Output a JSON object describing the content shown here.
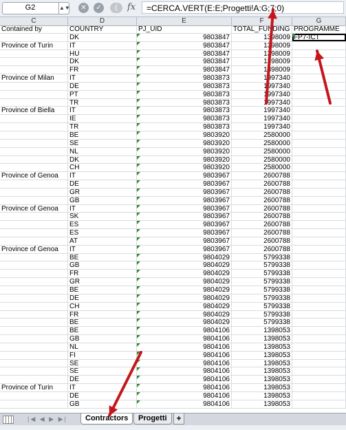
{
  "formula_bar": {
    "cell_ref": "G2",
    "formula": "=CERCA.VERT(E:E;Progetti!A:G;7;0)",
    "fx_label": "fx"
  },
  "columns": [
    "C",
    "D",
    "E",
    "F",
    "G"
  ],
  "header_row": {
    "contained_by": "Contained by",
    "country": "COUNTRY",
    "pj_uid": "PJ_UID",
    "total_funding": "TOTAL_FUNDING",
    "programme": "PROGRAMME"
  },
  "rows": [
    {
      "c": "",
      "d": "DK",
      "e": "9803847",
      "f": "1398009",
      "g": "FP7-ICT"
    },
    {
      "c": "Province of Turin",
      "d": "IT",
      "e": "9803847",
      "f": "1398009",
      "g": ""
    },
    {
      "c": "",
      "d": "HU",
      "e": "9803847",
      "f": "1398009",
      "g": ""
    },
    {
      "c": "",
      "d": "DK",
      "e": "9803847",
      "f": "1398009",
      "g": ""
    },
    {
      "c": "",
      "d": "FR",
      "e": "9803847",
      "f": "1398009",
      "g": ""
    },
    {
      "c": "Province of Milan",
      "d": "IT",
      "e": "9803873",
      "f": "1997340",
      "g": ""
    },
    {
      "c": "",
      "d": "DE",
      "e": "9803873",
      "f": "1997340",
      "g": ""
    },
    {
      "c": "",
      "d": "PT",
      "e": "9803873",
      "f": "1997340",
      "g": ""
    },
    {
      "c": "",
      "d": "TR",
      "e": "9803873",
      "f": "1997340",
      "g": ""
    },
    {
      "c": "Province of Biella",
      "d": "IT",
      "e": "9803873",
      "f": "1997340",
      "g": ""
    },
    {
      "c": "",
      "d": "IE",
      "e": "9803873",
      "f": "1997340",
      "g": ""
    },
    {
      "c": "",
      "d": "TR",
      "e": "9803873",
      "f": "1997340",
      "g": ""
    },
    {
      "c": "",
      "d": "BE",
      "e": "9803920",
      "f": "2580000",
      "g": ""
    },
    {
      "c": "",
      "d": "SE",
      "e": "9803920",
      "f": "2580000",
      "g": ""
    },
    {
      "c": "",
      "d": "NL",
      "e": "9803920",
      "f": "2580000",
      "g": ""
    },
    {
      "c": "",
      "d": "DK",
      "e": "9803920",
      "f": "2580000",
      "g": ""
    },
    {
      "c": "",
      "d": "CH",
      "e": "9803920",
      "f": "2580000",
      "g": ""
    },
    {
      "c": "Province of Genoa",
      "d": "IT",
      "e": "9803967",
      "f": "2600788",
      "g": ""
    },
    {
      "c": "",
      "d": "DE",
      "e": "9803967",
      "f": "2600788",
      "g": ""
    },
    {
      "c": "",
      "d": "GR",
      "e": "9803967",
      "f": "2600788",
      "g": ""
    },
    {
      "c": "",
      "d": "GB",
      "e": "9803967",
      "f": "2600788",
      "g": ""
    },
    {
      "c": "Province of Genoa",
      "d": "IT",
      "e": "9803967",
      "f": "2600788",
      "g": ""
    },
    {
      "c": "",
      "d": "SK",
      "e": "9803967",
      "f": "2600788",
      "g": ""
    },
    {
      "c": "",
      "d": "ES",
      "e": "9803967",
      "f": "2600788",
      "g": ""
    },
    {
      "c": "",
      "d": "ES",
      "e": "9803967",
      "f": "2600788",
      "g": ""
    },
    {
      "c": "",
      "d": "AT",
      "e": "9803967",
      "f": "2600788",
      "g": ""
    },
    {
      "c": "Province of Genoa",
      "d": "IT",
      "e": "9803967",
      "f": "2600788",
      "g": ""
    },
    {
      "c": "",
      "d": "BE",
      "e": "9804029",
      "f": "5799338",
      "g": ""
    },
    {
      "c": "",
      "d": "GB",
      "e": "9804029",
      "f": "5799338",
      "g": ""
    },
    {
      "c": "",
      "d": "FR",
      "e": "9804029",
      "f": "5799338",
      "g": ""
    },
    {
      "c": "",
      "d": "GR",
      "e": "9804029",
      "f": "5799338",
      "g": ""
    },
    {
      "c": "",
      "d": "BE",
      "e": "9804029",
      "f": "5799338",
      "g": ""
    },
    {
      "c": "",
      "d": "DE",
      "e": "9804029",
      "f": "5799338",
      "g": ""
    },
    {
      "c": "",
      "d": "CH",
      "e": "9804029",
      "f": "5799338",
      "g": ""
    },
    {
      "c": "",
      "d": "FR",
      "e": "9804029",
      "f": "5799338",
      "g": ""
    },
    {
      "c": "",
      "d": "BE",
      "e": "9804029",
      "f": "5799338",
      "g": ""
    },
    {
      "c": "",
      "d": "BE",
      "e": "9804106",
      "f": "1398053",
      "g": ""
    },
    {
      "c": "",
      "d": "GB",
      "e": "9804106",
      "f": "1398053",
      "g": ""
    },
    {
      "c": "",
      "d": "NL",
      "e": "9804106",
      "f": "1398053",
      "g": ""
    },
    {
      "c": "",
      "d": "FI",
      "e": "9804106",
      "f": "1398053",
      "g": ""
    },
    {
      "c": "",
      "d": "SE",
      "e": "9804106",
      "f": "1398053",
      "g": ""
    },
    {
      "c": "",
      "d": "SE",
      "e": "9804106",
      "f": "1398053",
      "g": ""
    },
    {
      "c": "",
      "d": "DE",
      "e": "9804106",
      "f": "1398053",
      "g": ""
    },
    {
      "c": "Province of Turin",
      "d": "IT",
      "e": "9804106",
      "f": "1398053",
      "g": ""
    },
    {
      "c": "",
      "d": "DE",
      "e": "9804106",
      "f": "1398053",
      "g": ""
    },
    {
      "c": "",
      "d": "GB",
      "e": "9804106",
      "f": "1398053",
      "g": ""
    }
  ],
  "sheet_tabs": [
    {
      "label": "Contractors",
      "active": true
    },
    {
      "label": "Progetti",
      "active": false
    }
  ],
  "add_tab": "+",
  "tab_nav_glyphs": "|◀ ◀ ▶ ▶|",
  "annotation_color": "#c4161c"
}
